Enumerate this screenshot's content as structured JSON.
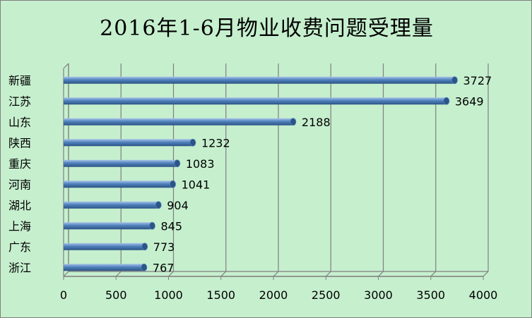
{
  "chart_data": {
    "type": "bar",
    "orientation": "horizontal",
    "style": "3d-cylinder",
    "title": "2016年1-6月物业收费问题受理量",
    "categories": [
      "新疆",
      "江苏",
      "山东",
      "陕西",
      "重庆",
      "河南",
      "湖北",
      "上海",
      "广东",
      "浙江"
    ],
    "values": [
      3727,
      3649,
      2188,
      1232,
      1083,
      1041,
      904,
      845,
      773,
      767
    ],
    "data_labels": [
      "3727",
      "3649",
      "2188",
      "1232",
      "1083",
      "1041",
      "904",
      "845",
      "773",
      "767"
    ],
    "x_ticks": [
      "0",
      "500",
      "1000",
      "1500",
      "2000",
      "2500",
      "3000",
      "3500",
      "4000"
    ],
    "xlim": [
      0,
      4000
    ],
    "tick_step": 500,
    "grid": true,
    "legend": "none",
    "colors": {
      "background": "#c6efce",
      "bar": "#4f81bd",
      "bar_dark": "#2c5484",
      "bar_light": "#a9c4e8",
      "grid": "#7f7f7f",
      "text": "#000000"
    }
  }
}
